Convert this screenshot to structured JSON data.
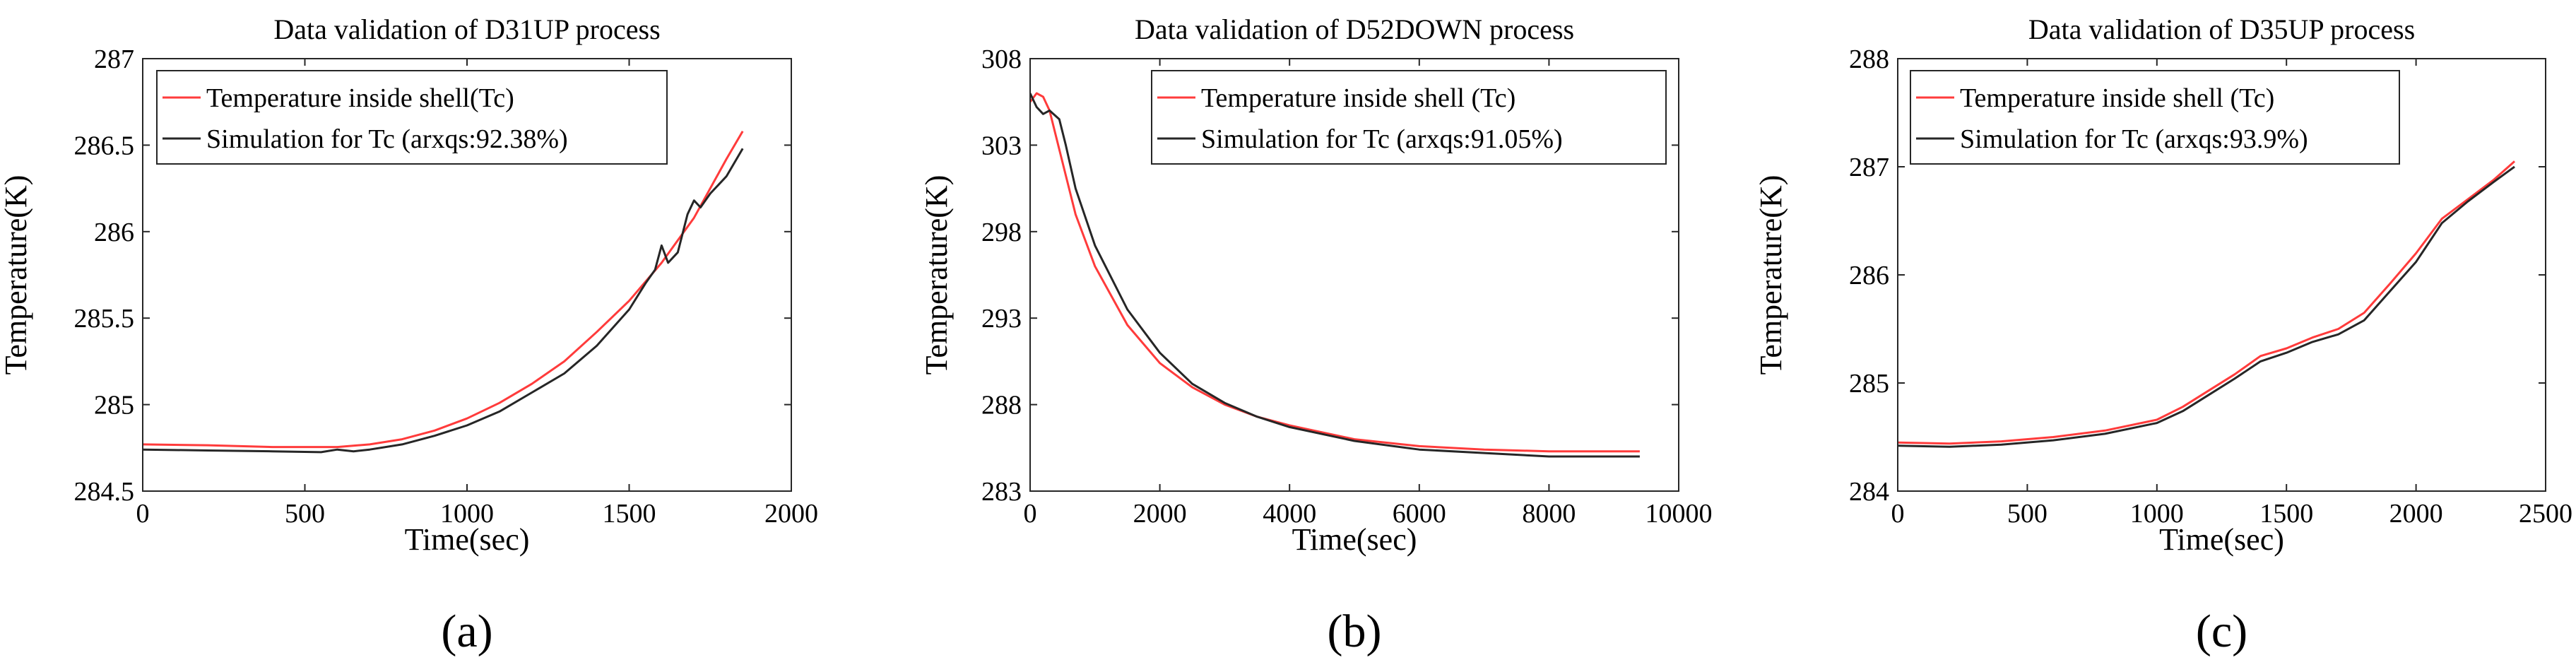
{
  "colors": {
    "measured": "#ff3b3b",
    "simulated": "#262626",
    "axis": "#262626"
  },
  "chart_data": [
    {
      "type": "line",
      "panel_label": "(a)",
      "title": "Data validation of D31UP process",
      "xlabel": "Time(sec)",
      "ylabel": "Temperature(K)",
      "xlim": [
        0,
        2000
      ],
      "ylim": [
        284.5,
        287
      ],
      "xticks": [
        0,
        500,
        1000,
        1500,
        2000
      ],
      "yticks": [
        284.5,
        285,
        285.5,
        286,
        286.5,
        287
      ],
      "ytick_labels": [
        "284.5",
        "285",
        "285.5",
        "286",
        "286.5",
        "287"
      ],
      "legend_location": "top-left",
      "series": [
        {
          "name": "Temperature inside shell(Tc)",
          "color": "#ff3b3b",
          "x": [
            0,
            200,
            400,
            600,
            700,
            800,
            900,
            1000,
            1100,
            1200,
            1300,
            1400,
            1500,
            1600,
            1700,
            1800,
            1850
          ],
          "y": [
            284.77,
            284.765,
            284.755,
            284.755,
            284.77,
            284.8,
            284.85,
            284.92,
            285.01,
            285.12,
            285.25,
            285.42,
            285.6,
            285.82,
            286.08,
            286.42,
            286.58
          ]
        },
        {
          "name": "Simulation for Tc (arxqs:92.38%)",
          "color": "#262626",
          "x": [
            0,
            200,
            400,
            550,
            600,
            650,
            700,
            800,
            900,
            1000,
            1100,
            1200,
            1300,
            1400,
            1500,
            1550,
            1580,
            1600,
            1620,
            1650,
            1680,
            1700,
            1720,
            1750,
            1800,
            1850
          ],
          "y": [
            284.74,
            284.735,
            284.73,
            284.725,
            284.74,
            284.73,
            284.74,
            284.77,
            284.82,
            284.88,
            284.96,
            285.07,
            285.18,
            285.34,
            285.55,
            285.7,
            285.78,
            285.92,
            285.82,
            285.88,
            286.1,
            286.18,
            286.14,
            286.22,
            286.32,
            286.48
          ]
        }
      ]
    },
    {
      "type": "line",
      "panel_label": "(b)",
      "title": "Data validation of D52DOWN process",
      "xlabel": "Time(sec)",
      "ylabel": "Temperature(K)",
      "xlim": [
        0,
        10000
      ],
      "ylim": [
        283,
        308
      ],
      "xticks": [
        0,
        2000,
        4000,
        6000,
        8000,
        10000
      ],
      "yticks": [
        283,
        288,
        293,
        298,
        303,
        308
      ],
      "ytick_labels": [
        "283",
        "288",
        "293",
        "298",
        "303",
        "308"
      ],
      "legend_location": "top-right",
      "series": [
        {
          "name": "Temperature inside shell (Tc)",
          "color": "#ff3b3b",
          "x": [
            0,
            100,
            200,
            300,
            500,
            700,
            1000,
            1500,
            2000,
            2500,
            3000,
            3500,
            4000,
            5000,
            6000,
            7000,
            8000,
            9400
          ],
          "y": [
            305.5,
            306.0,
            305.8,
            305.0,
            302.0,
            299.0,
            296.0,
            292.6,
            290.4,
            289.0,
            288.0,
            287.3,
            286.8,
            286.0,
            285.6,
            285.4,
            285.3,
            285.3
          ]
        },
        {
          "name": "Simulation for Tc (arxqs:91.05%)",
          "color": "#262626",
          "x": [
            0,
            100,
            200,
            300,
            450,
            550,
            700,
            1000,
            1500,
            2000,
            2500,
            3000,
            3500,
            4000,
            5000,
            6000,
            7000,
            8000,
            9400
          ],
          "y": [
            306.0,
            305.2,
            304.8,
            305.0,
            304.5,
            303.0,
            300.5,
            297.2,
            293.5,
            291.0,
            289.2,
            288.1,
            287.3,
            286.7,
            285.9,
            285.4,
            285.2,
            285.0,
            285.0
          ]
        }
      ]
    },
    {
      "type": "line",
      "panel_label": "(c)",
      "title": "Data validation of D35UP process",
      "xlabel": "Time(sec)",
      "ylabel": "Temperature(K)",
      "xlim": [
        0,
        2500
      ],
      "ylim": [
        284,
        288
      ],
      "xticks": [
        0,
        500,
        1000,
        1500,
        2000,
        2500
      ],
      "yticks": [
        284,
        285,
        286,
        287,
        288
      ],
      "ytick_labels": [
        "284",
        "285",
        "286",
        "287",
        "288"
      ],
      "legend_location": "top-left",
      "series": [
        {
          "name": "Temperature inside shell (Tc)",
          "color": "#ff3b3b",
          "x": [
            0,
            200,
            400,
            600,
            800,
            1000,
            1100,
            1200,
            1300,
            1400,
            1500,
            1600,
            1700,
            1800,
            1900,
            2000,
            2100,
            2200,
            2300,
            2380
          ],
          "y": [
            284.45,
            284.44,
            284.46,
            284.5,
            284.56,
            284.66,
            284.78,
            284.93,
            285.08,
            285.25,
            285.32,
            285.42,
            285.5,
            285.65,
            285.92,
            286.2,
            286.52,
            286.7,
            286.88,
            287.05
          ]
        },
        {
          "name": "Simulation for Tc (arxqs:93.9%)",
          "color": "#262626",
          "x": [
            0,
            200,
            400,
            600,
            800,
            1000,
            1100,
            1200,
            1300,
            1400,
            1500,
            1600,
            1700,
            1800,
            1900,
            2000,
            2100,
            2200,
            2300,
            2380
          ],
          "y": [
            284.42,
            284.41,
            284.43,
            284.47,
            284.53,
            284.63,
            284.74,
            284.89,
            285.04,
            285.2,
            285.28,
            285.38,
            285.45,
            285.58,
            285.85,
            286.12,
            286.48,
            286.68,
            286.86,
            287.0
          ]
        }
      ]
    }
  ]
}
